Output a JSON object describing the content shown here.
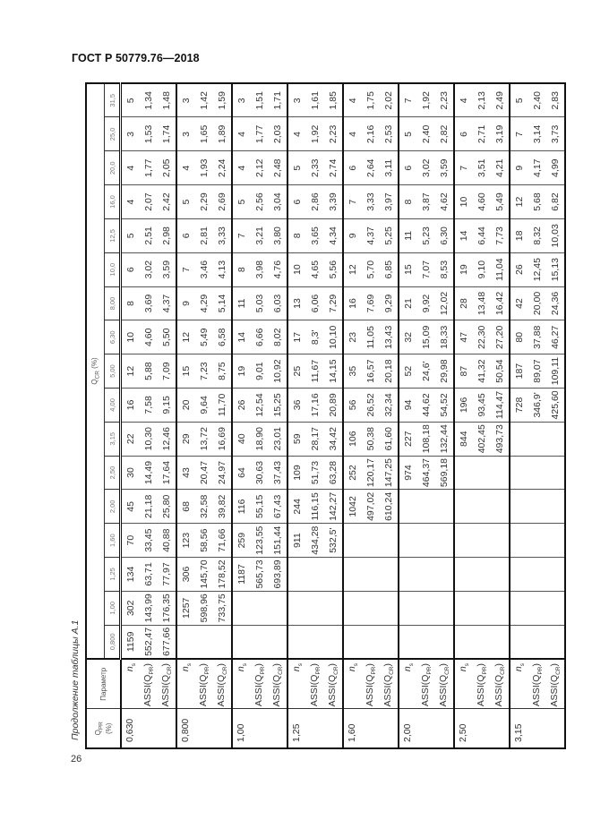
{
  "doc_header": "ГОСТ Р 50779.76—2018",
  "page_number": "26",
  "caption": "Продолжение таблицы А.1",
  "table": {
    "qpr_header": {
      "pre": "Q",
      "sub": "PR",
      "post": "(%)"
    },
    "param_header": "Параметр",
    "qcr_header": {
      "pre": "Q",
      "sub": "CR",
      "post": " (%)"
    },
    "qcr_values": [
      "0,800",
      "1,00",
      "1,25",
      "1,60",
      "2,00",
      "2,50",
      "3,15",
      "4,00",
      "5,00",
      "6,30",
      "8,00",
      "10,0",
      "12,5",
      "16,0",
      "20,0",
      "25,0",
      "31,5"
    ],
    "params": [
      {
        "pre": "n",
        "sub": "s",
        "post": ""
      },
      {
        "pre": "ASSI(Q",
        "sub": "PR",
        "post": ")"
      },
      {
        "pre": "ASSI(Q",
        "sub": "CR",
        "post": ")"
      }
    ],
    "groups": [
      {
        "qpr": "0,630",
        "rows": [
          [
            "1159",
            "302",
            "134",
            "70",
            "45",
            "30",
            "22",
            "16",
            "12",
            "10",
            "8",
            "6",
            "5",
            "4",
            "4",
            "3",
            "5"
          ],
          [
            "552,47",
            "143,99",
            "63,71",
            "33,45",
            "21,18",
            "14,49",
            "10,30",
            "7,58",
            "5,88",
            "4,60",
            "3,69",
            "3,02",
            "2,51",
            "2,07",
            "1,77",
            "1,53",
            "1,34"
          ],
          [
            "677,66",
            "176,35",
            "77,97",
            "40,88",
            "25,80",
            "17,64",
            "12,46",
            "9,15",
            "7,09",
            "5,50",
            "4,37",
            "3,59",
            "2,98",
            "2,42",
            "2,05",
            "1,74",
            "1,48"
          ]
        ]
      },
      {
        "qpr": "0,800",
        "rows": [
          [
            "",
            "1257",
            "306",
            "123",
            "68",
            "43",
            "29",
            "20",
            "15",
            "12",
            "9",
            "7",
            "6",
            "5",
            "4",
            "3",
            "3"
          ],
          [
            "",
            "598,96",
            "145,70",
            "58,56",
            "32,58",
            "20,47",
            "13,72",
            "9,64",
            "7,23",
            "5,49",
            "4,29",
            "3,46",
            "2,81",
            "2,29",
            "1,93",
            "1,65",
            "1,42"
          ],
          [
            "",
            "733,75",
            "178,52",
            "71,66",
            "39,82",
            "24,97",
            "16,69",
            "11,70",
            "8,75",
            "6,58",
            "5,14",
            "4,13",
            "3,33",
            "2,69",
            "2,24",
            "1,89",
            "1,59"
          ]
        ]
      },
      {
        "qpr": "1,00",
        "rows": [
          [
            "",
            "",
            "1187",
            "259",
            "116",
            "64",
            "40",
            "26",
            "19",
            "14",
            "11",
            "8",
            "7",
            "5",
            "4",
            "4",
            "3"
          ],
          [
            "",
            "",
            "565,73",
            "123,55",
            "55,15",
            "30,63",
            "18,90",
            "12,54",
            "9,01",
            "6,66",
            "5,03",
            "3,98",
            "3,21",
            "2,56",
            "2,12",
            "1,77",
            "1,51"
          ],
          [
            "",
            "",
            "693,89",
            "151,44",
            "67,43",
            "37,43",
            "23,01",
            "15,25",
            "10,92",
            "8,02",
            "6,03",
            "4,76",
            "3,80",
            "3,04",
            "2,48",
            "2,03",
            "1,71"
          ]
        ]
      },
      {
        "qpr": "1,25",
        "rows": [
          [
            "",
            "",
            "",
            "911",
            "244",
            "109",
            "59",
            "36",
            "25",
            "17",
            "13",
            "10",
            "8",
            "6",
            "5",
            "4",
            "3"
          ],
          [
            "",
            "",
            "",
            "434,28",
            "116,15",
            "51,73",
            "28,17",
            "17,16",
            "11,67",
            "8,3'",
            "6,06",
            "4,65",
            "3,65",
            "2,86",
            "2,33",
            "1,92",
            "1,61"
          ],
          [
            "",
            "",
            "",
            "532,5'",
            "142,27",
            "63,28",
            "34,42",
            "20,89",
            "14,15",
            "10,10",
            "7,29",
            "5,56",
            "4,34",
            "3,39",
            "2,74",
            "2,23",
            "1,85"
          ]
        ]
      },
      {
        "qpr": "1,60",
        "rows": [
          [
            "",
            "",
            "",
            "",
            "1042",
            "252",
            "106",
            "56",
            "35",
            "23",
            "16",
            "12",
            "9",
            "7",
            "6",
            "4",
            "4"
          ],
          [
            "",
            "",
            "",
            "",
            "497,02",
            "120,17",
            "50,38",
            "26,52",
            "16,57",
            "11,05",
            "7,69",
            "5,70",
            "4,37",
            "3,33",
            "2,64",
            "2,16",
            "1,75"
          ],
          [
            "",
            "",
            "",
            "",
            "610,24",
            "147,25",
            "61,60",
            "32,34",
            "20,18",
            "13,43",
            "9,29",
            "6,85",
            "5,25",
            "3,97",
            "3,11",
            "2,53",
            "2,02"
          ]
        ]
      },
      {
        "qpr": "2,00",
        "rows": [
          [
            "",
            "",
            "",
            "",
            "",
            "974",
            "227",
            "94",
            "52",
            "32",
            "21",
            "15",
            "11",
            "8",
            "6",
            "5",
            "7"
          ],
          [
            "",
            "",
            "",
            "",
            "",
            "464,37",
            "108,18",
            "44,62",
            "24,6'",
            "15,09",
            "9,92",
            "7,07",
            "5,23",
            "3,87",
            "3,02",
            "2,40",
            "1,92"
          ],
          [
            "",
            "",
            "",
            "",
            "",
            "569,18",
            "132,44",
            "54,52",
            "29,98",
            "18,33",
            "12,02",
            "8,53",
            "6,30",
            "4,62",
            "3,59",
            "2,82",
            "2,23"
          ]
        ]
      },
      {
        "qpr": "2,50",
        "rows": [
          [
            "",
            "",
            "",
            "",
            "",
            "",
            "844",
            "196",
            "87",
            "47",
            "28",
            "19",
            "14",
            "10",
            "7",
            "6",
            "4"
          ],
          [
            "",
            "",
            "",
            "",
            "",
            "",
            "402,45",
            "93,45",
            "41,32",
            "22,30",
            "13,48",
            "9,10",
            "6,44",
            "4,60",
            "3,51",
            "2,71",
            "2,13"
          ],
          [
            "",
            "",
            "",
            "",
            "",
            "",
            "493,73",
            "114,47",
            "50,54",
            "27,20",
            "16,42",
            "11,04",
            "7,73",
            "5,49",
            "4,21",
            "3,19",
            "2,49"
          ]
        ]
      },
      {
        "qpr": "3,15",
        "rows": [
          [
            "",
            "",
            "",
            "",
            "",
            "",
            "",
            "728",
            "187",
            "80",
            "42",
            "26",
            "18",
            "12",
            "9",
            "7",
            "5"
          ],
          [
            "",
            "",
            "",
            "",
            "",
            "",
            "",
            "346,9'",
            "89,07",
            "37,88",
            "20,00",
            "12,45",
            "8,32",
            "5,68",
            "4,17",
            "3,14",
            "2,40"
          ],
          [
            "",
            "",
            "",
            "",
            "",
            "",
            "",
            "425,60",
            "109,11",
            "46,27",
            "24,36",
            "15,13",
            "10,03",
            "6,82",
            "4,99",
            "3,73",
            "2,83"
          ]
        ]
      }
    ]
  }
}
